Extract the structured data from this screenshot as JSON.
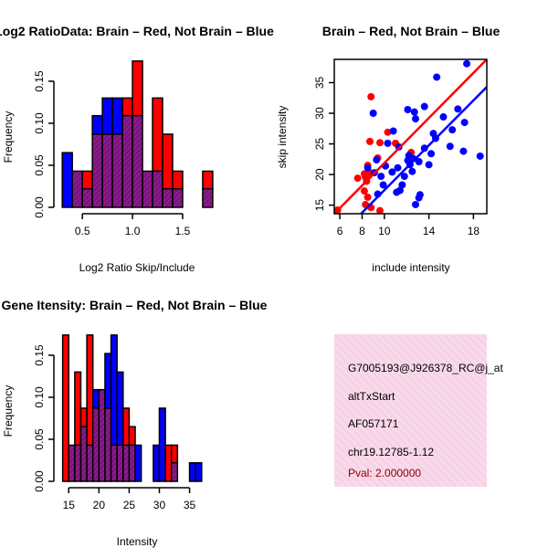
{
  "colors": {
    "red": "#ff0000",
    "blue": "#0000ff",
    "overlap": "#8b1a8b",
    "hatch": "#5a1060",
    "info_bg": "#f8d9ea",
    "pval": "#8b0000"
  },
  "chart_data": [
    {
      "id": "ratio",
      "type": "bar",
      "subtype": "overlapping-histogram",
      "title": "Log2 RatioData: Brain – Red, Not Brain – Blue",
      "xlabel": "Log2 Ratio Skip/Include",
      "ylabel": "Frequency",
      "bin_width": 0.1,
      "bin_starts": [
        0.3,
        0.4,
        0.5,
        0.6,
        0.7,
        0.8,
        0.9,
        1.0,
        1.1,
        1.2,
        1.3,
        1.4,
        1.5,
        1.6,
        1.7
      ],
      "series": [
        {
          "name": "Brain",
          "color": "red",
          "values": [
            0,
            0.043,
            0.043,
            0.087,
            0.087,
            0.087,
            0.13,
            0.174,
            0.043,
            0.13,
            0.087,
            0.043,
            0,
            0,
            0.043
          ]
        },
        {
          "name": "Not Brain",
          "color": "blue",
          "values": [
            0.065,
            0.043,
            0.022,
            0.109,
            0.13,
            0.13,
            0.109,
            0.109,
            0.043,
            0.043,
            0.022,
            0.022,
            0,
            0,
            0.022
          ]
        }
      ],
      "xlim": [
        0.28,
        1.81
      ],
      "ylim": [
        0,
        0.176
      ],
      "xticks": [
        0.5,
        1.0,
        1.5
      ],
      "xtick_labels": [
        "0.5",
        "1.0",
        "1.5"
      ],
      "yticks": [
        0,
        0.05,
        0.1,
        0.15
      ],
      "ytick_labels": [
        "0.00",
        "0.05",
        "0.10",
        "0.15"
      ]
    },
    {
      "id": "scatter",
      "type": "scatter",
      "title": "Brain – Red, Not Brain – Blue",
      "xlabel": "include intensity",
      "ylabel": "skip intensity",
      "xlim": [
        5.5,
        19.2
      ],
      "ylim": [
        13.6,
        38.8
      ],
      "xticks": [
        6,
        8,
        10,
        14,
        18
      ],
      "xtick_labels": [
        "6",
        "8",
        "10",
        "14",
        "18"
      ],
      "yticks": [
        15,
        20,
        25,
        30,
        35
      ],
      "ytick_labels": [
        "15",
        "20",
        "25",
        "30",
        "35"
      ],
      "series": [
        {
          "name": "Brain",
          "color": "red",
          "points": [
            [
              5.8,
              14.2
            ],
            [
              7.6,
              19.4
            ],
            [
              8.2,
              20.1
            ],
            [
              8.3,
              19.6
            ],
            [
              8.4,
              18.9
            ],
            [
              8.6,
              19.8
            ],
            [
              8.2,
              17.3
            ],
            [
              8.5,
              16.3
            ],
            [
              8.3,
              15.1
            ],
            [
              8.8,
              14.6
            ],
            [
              9.6,
              14.1
            ],
            [
              8.6,
              20.4
            ],
            [
              8.7,
              25.4
            ],
            [
              9.6,
              25.2
            ],
            [
              10.3,
              26.9
            ],
            [
              11.0,
              25.1
            ],
            [
              8.8,
              32.7
            ],
            [
              9.4,
              22.7
            ],
            [
              8.5,
              21.5
            ],
            [
              12.4,
              23.6
            ]
          ]
        },
        {
          "name": "Not Brain",
          "color": "blue",
          "points": [
            [
              8.5,
              21.1
            ],
            [
              9.3,
              22.4
            ],
            [
              9.1,
              20.3
            ],
            [
              9.7,
              19.7
            ],
            [
              9.9,
              18.3
            ],
            [
              9.4,
              16.8
            ],
            [
              10.1,
              21.4
            ],
            [
              10.3,
              25.1
            ],
            [
              10.8,
              27.1
            ],
            [
              10.7,
              20.4
            ],
            [
              11.2,
              21.1
            ],
            [
              11.1,
              17.1
            ],
            [
              11.4,
              17.4
            ],
            [
              11.6,
              18.3
            ],
            [
              11.8,
              19.7
            ],
            [
              12.1,
              22.3
            ],
            [
              12.2,
              23.1
            ],
            [
              12.3,
              21.6
            ],
            [
              12.5,
              20.5
            ],
            [
              12.6,
              22.6
            ],
            [
              12.7,
              30.2
            ],
            [
              12.1,
              30.6
            ],
            [
              12.8,
              29.1
            ],
            [
              13.1,
              22.1
            ],
            [
              12.8,
              15.1
            ],
            [
              13.1,
              16.2
            ],
            [
              13.6,
              31.1
            ],
            [
              14.0,
              21.6
            ],
            [
              14.2,
              23.4
            ],
            [
              14.4,
              26.7
            ],
            [
              14.6,
              25.9
            ],
            [
              14.7,
              35.9
            ],
            [
              13.6,
              24.3
            ],
            [
              15.3,
              29.4
            ],
            [
              15.9,
              24.6
            ],
            [
              16.1,
              27.3
            ],
            [
              16.6,
              30.7
            ],
            [
              17.1,
              23.8
            ],
            [
              17.2,
              28.5
            ],
            [
              17.4,
              38.1
            ],
            [
              18.6,
              23.0
            ],
            [
              9.0,
              30.0
            ],
            [
              13.2,
              16.7
            ],
            [
              11.3,
              24.5
            ]
          ]
        }
      ],
      "fit_lines": [
        {
          "name": "Brain",
          "color": "red",
          "x0": 5.5,
          "y0": 13.6,
          "x1": 19.2,
          "y1": 38.8
        },
        {
          "name": "Not Brain",
          "color": "blue",
          "x0": 7.9,
          "y0": 13.6,
          "x1": 19.2,
          "y1": 34.3
        }
      ]
    },
    {
      "id": "intensity",
      "type": "bar",
      "subtype": "overlapping-histogram",
      "title": "Gene Itensity: Brain – Red, Not Brain – Blue",
      "xlabel": "Intensity",
      "ylabel": "Frequency",
      "bin_width": 1,
      "bin_starts": [
        14,
        15,
        16,
        17,
        18,
        19,
        20,
        21,
        22,
        23,
        24,
        25,
        26,
        27,
        28,
        29,
        30,
        31,
        32,
        33,
        34,
        35,
        36,
        37
      ],
      "series": [
        {
          "name": "Brain",
          "color": "red",
          "values": [
            0.174,
            0.043,
            0.13,
            0.087,
            0.174,
            0.087,
            0.109,
            0.087,
            0.043,
            0.043,
            0.087,
            0.065,
            0,
            0,
            0,
            0,
            0,
            0.043,
            0.043,
            0,
            0,
            0,
            0,
            0
          ]
        },
        {
          "name": "Not Brain",
          "color": "blue",
          "values": [
            0,
            0.043,
            0.043,
            0.065,
            0.043,
            0.109,
            0.109,
            0.152,
            0.174,
            0.13,
            0.043,
            0.043,
            0.043,
            0,
            0,
            0.043,
            0.087,
            0,
            0.022,
            0,
            0,
            0.022,
            0.022,
            0
          ]
        }
      ],
      "xlim": [
        13.6,
        39.0
      ],
      "ylim": [
        0,
        0.176
      ],
      "xticks": [
        15,
        20,
        25,
        30,
        35
      ],
      "xtick_labels": [
        "15",
        "20",
        "25",
        "30",
        "35"
      ],
      "yticks": [
        0,
        0.05,
        0.1,
        0.15
      ],
      "ytick_labels": [
        "0.00",
        "0.05",
        "0.10",
        "0.15"
      ]
    }
  ],
  "info_box": {
    "lines": [
      "G7005193@J926378_RC@j_at",
      "altTxStart",
      "AF057171",
      "chr19.12785-1.12"
    ],
    "pval": "Pval: 2.000000"
  }
}
